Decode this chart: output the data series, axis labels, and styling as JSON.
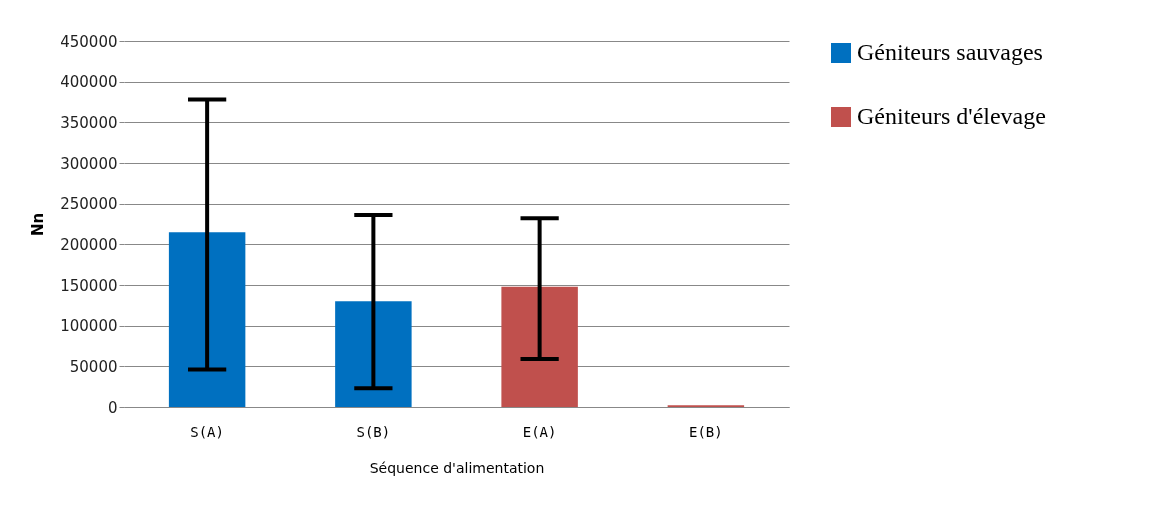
{
  "chart_data": {
    "type": "bar",
    "xlabel": "Séquence d'alimentation",
    "ylabel": "Nn",
    "categories": [
      "S(A)",
      "S(B)",
      "E(A)",
      "E(B)"
    ],
    "series": [
      {
        "name": "Géniteurs sauvages",
        "color": "#0070c0",
        "values": [
          215000,
          130000,
          null,
          null
        ],
        "errors": [
          [
            46000,
            378000
          ],
          [
            23000,
            236000
          ],
          null,
          null
        ]
      },
      {
        "name": "Géniteurs d'élevage",
        "color": "#c0504d",
        "values": [
          null,
          null,
          148000,
          2000
        ],
        "errors": [
          null,
          null,
          [
            59000,
            232000
          ],
          null
        ]
      }
    ],
    "ylim": [
      0,
      450000
    ],
    "yticks": [
      0,
      50000,
      100000,
      150000,
      200000,
      250000,
      300000,
      350000,
      400000,
      450000
    ],
    "grid": "y",
    "legend": "right"
  }
}
